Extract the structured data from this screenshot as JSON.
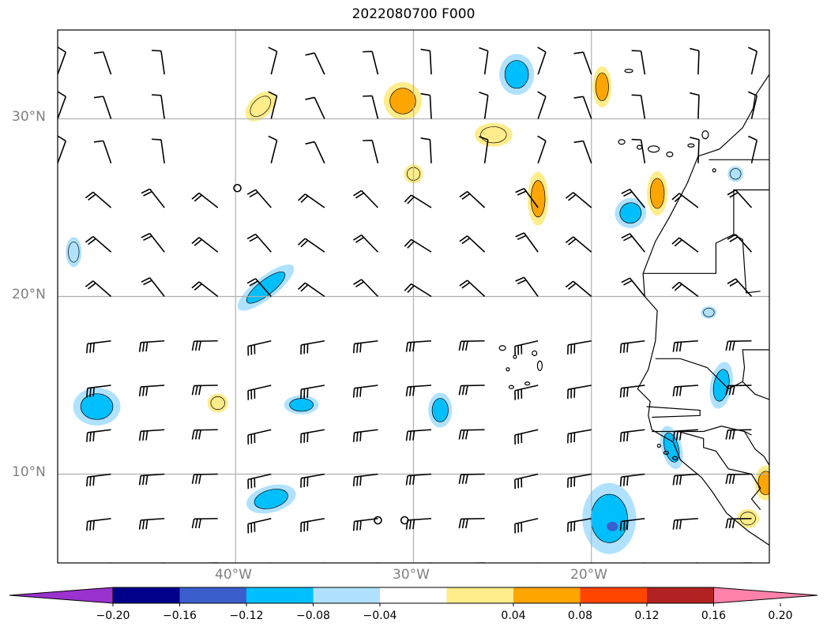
{
  "title": "2022080700 F000",
  "map": {
    "lon_range": [
      -50,
      -10
    ],
    "lat_range": [
      5,
      35
    ],
    "lat_ticks": [
      {
        "value": 10,
        "label": "10°N"
      },
      {
        "value": 20,
        "label": "20°N"
      },
      {
        "value": 30,
        "label": "30°N"
      }
    ],
    "lon_ticks": [
      {
        "value": -40,
        "label": "40°W"
      },
      {
        "value": -30,
        "label": "30°W"
      },
      {
        "value": -20,
        "label": "20°W"
      }
    ],
    "grid": true
  },
  "colorbar": {
    "tick_labels": [
      "−0.20",
      "−0.16",
      "−0.12",
      "−0.08",
      "−0.04",
      "0.04",
      "0.08",
      "0.12",
      "0.16",
      "0.20"
    ],
    "tick_values": [
      -0.2,
      -0.16,
      -0.12,
      -0.08,
      -0.04,
      0.04,
      0.08,
      0.12,
      0.16,
      0.2
    ],
    "colors": [
      "#9a32cd",
      "#00008b",
      "#3a5fcd",
      "#00bfff",
      "#b0e2ff",
      "#ffffff",
      "#ffec8b",
      "#ffa500",
      "#ff4500",
      "#b22222",
      "#ff82ab"
    ],
    "extend": "both"
  },
  "chart_data": {
    "type": "heatmap",
    "title": "2022080700 F000",
    "xlim": [
      -50,
      -10
    ],
    "ylim": [
      5,
      35
    ],
    "levels": [
      -0.2,
      -0.16,
      -0.12,
      -0.08,
      -0.04,
      0.04,
      0.08,
      0.12,
      0.16,
      0.2
    ],
    "features": [
      {
        "lon": -38.3,
        "lat": 20.5,
        "value": -0.1
      },
      {
        "lon": -47.8,
        "lat": 13.8,
        "value": -0.1
      },
      {
        "lon": -36.3,
        "lat": 13.9,
        "value": -0.1
      },
      {
        "lon": -38.0,
        "lat": 8.6,
        "value": -0.1
      },
      {
        "lon": -28.5,
        "lat": 13.6,
        "value": -0.1
      },
      {
        "lon": -19.0,
        "lat": 7.5,
        "value": -0.12
      },
      {
        "lon": -24.2,
        "lat": 32.5,
        "value": -0.1
      },
      {
        "lon": -17.8,
        "lat": 24.7,
        "value": -0.1
      },
      {
        "lon": -49.1,
        "lat": 22.5,
        "value": -0.06
      },
      {
        "lon": -12.7,
        "lat": 15.0,
        "value": -0.1
      },
      {
        "lon": -15.5,
        "lat": 11.5,
        "value": -0.1
      },
      {
        "lon": -13.4,
        "lat": 19.1,
        "value": -0.05
      },
      {
        "lon": -11.9,
        "lat": 26.9,
        "value": -0.05
      },
      {
        "lon": -30.6,
        "lat": 31.0,
        "value": 0.09
      },
      {
        "lon": -38.6,
        "lat": 30.7,
        "value": 0.06
      },
      {
        "lon": -25.5,
        "lat": 29.1,
        "value": 0.07
      },
      {
        "lon": -30.0,
        "lat": 26.9,
        "value": 0.06
      },
      {
        "lon": -23.0,
        "lat": 25.5,
        "value": 0.08
      },
      {
        "lon": -16.3,
        "lat": 25.8,
        "value": 0.09
      },
      {
        "lon": -19.4,
        "lat": 31.8,
        "value": 0.09
      },
      {
        "lon": -41.0,
        "lat": 14.0,
        "value": 0.05
      },
      {
        "lon": -10.2,
        "lat": 9.5,
        "value": 0.08
      },
      {
        "lon": -11.2,
        "lat": 7.5,
        "value": 0.05
      }
    ]
  }
}
